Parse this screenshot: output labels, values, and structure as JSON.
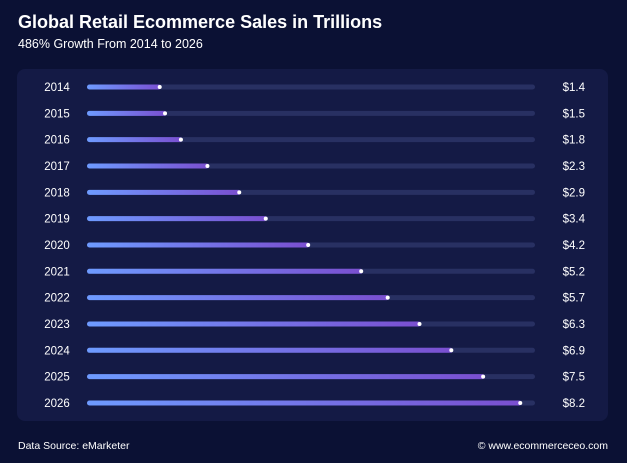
{
  "chart_data": {
    "type": "bar",
    "title": "Global Retail Ecommerce Sales in Trillions",
    "subtitle": "486% Growth From 2014 to 2026",
    "categories": [
      "2014",
      "2015",
      "2016",
      "2017",
      "2018",
      "2019",
      "2020",
      "2021",
      "2022",
      "2023",
      "2024",
      "2025",
      "2026"
    ],
    "values": [
      1.4,
      1.5,
      1.8,
      2.3,
      2.9,
      3.4,
      4.2,
      5.2,
      5.7,
      6.3,
      6.9,
      7.5,
      8.2
    ],
    "value_labels": [
      "$1.4",
      "$1.5",
      "$1.8",
      "$2.3",
      "$2.9",
      "$3.4",
      "$4.2",
      "$5.2",
      "$5.7",
      "$6.3",
      "$6.9",
      "$7.5",
      "$8.2"
    ],
    "orientation": "horizontal",
    "xlim": [
      0,
      8.45
    ],
    "grid": false,
    "legend": "none",
    "colors": {
      "background": "#0b1134",
      "panel": "#141a45",
      "track": "#283062",
      "bar_start": "#6e9bff",
      "bar_end": "#7a4fd0",
      "dot": "#ffffff"
    }
  },
  "footer": {
    "source": "Data Source: eMarketer",
    "credit": "© www.ecommerceceo.com"
  }
}
